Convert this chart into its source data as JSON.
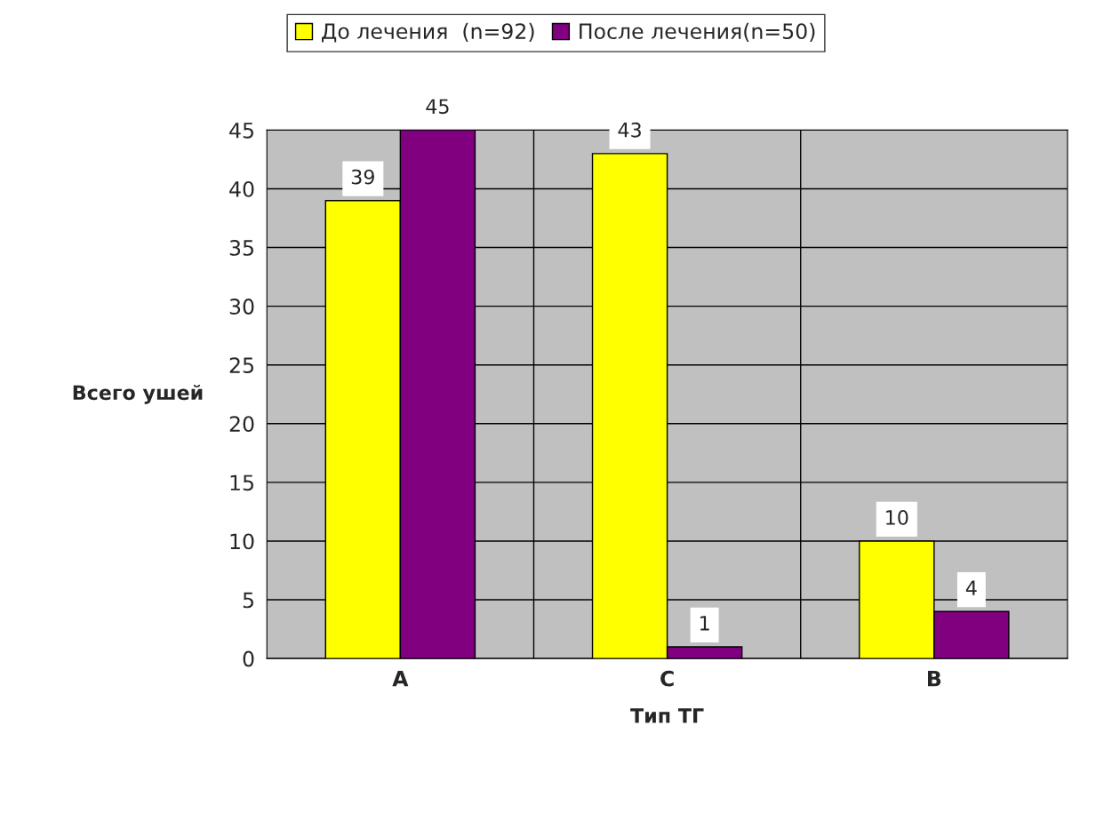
{
  "chart_data": {
    "type": "bar",
    "xlabel": "Тип ТГ",
    "ylabel": "Всего ушей",
    "categories": [
      "A",
      "C",
      "B"
    ],
    "series": [
      {
        "name": "До лечения  (n=92)",
        "color": "#ffff00",
        "values": [
          39,
          43,
          10
        ]
      },
      {
        "name": "После лечения(n=50)",
        "color": "#800080",
        "values": [
          45,
          1,
          4
        ]
      }
    ],
    "ylim": [
      0,
      45
    ],
    "yticks": [
      0,
      5,
      10,
      15,
      20,
      25,
      30,
      35,
      40,
      45
    ],
    "grid": "y",
    "legend": "top",
    "data_labels": true
  }
}
